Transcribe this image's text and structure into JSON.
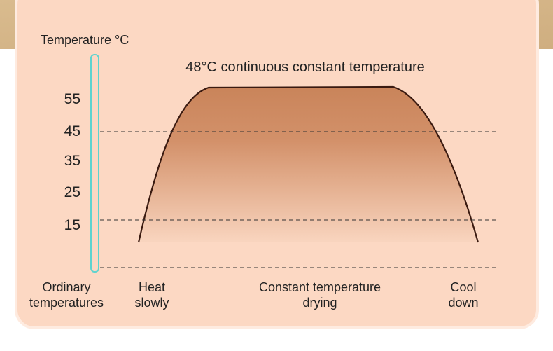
{
  "axis_label": "Temperature °C",
  "annotation": "48°C continuous constant temperature",
  "ticks": [
    "55",
    "45",
    "35",
    "25",
    "15"
  ],
  "phases": [
    {
      "lines": [
        "Ordinary",
        "temperatures"
      ]
    },
    {
      "lines": [
        "Heat",
        "slowly"
      ]
    },
    {
      "lines": [
        "Constant temperature",
        "drying"
      ]
    },
    {
      "lines": [
        "Cool",
        "down"
      ]
    }
  ]
}
